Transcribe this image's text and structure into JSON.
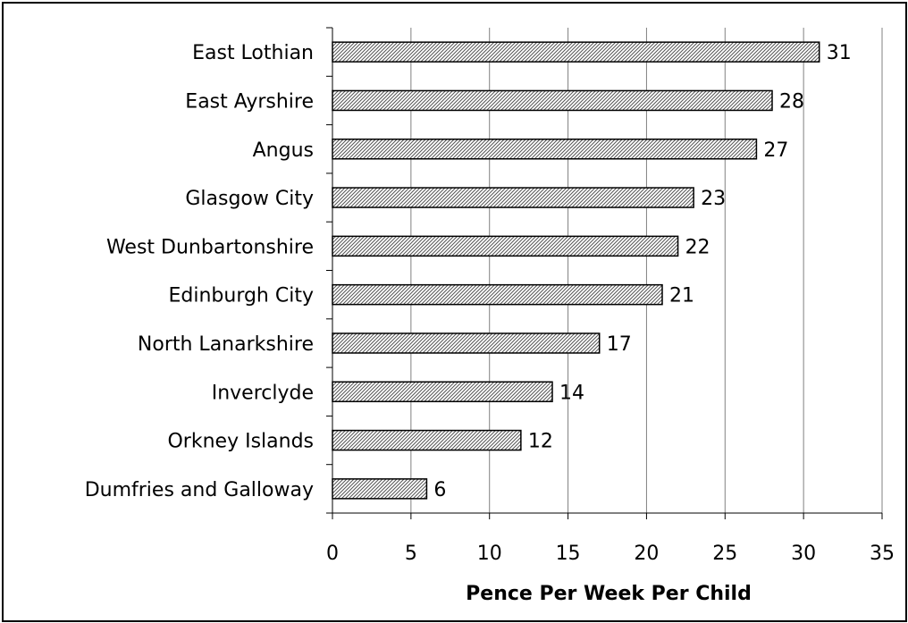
{
  "chart_data": {
    "type": "bar",
    "orientation": "horizontal",
    "categories": [
      "East Lothian",
      "East Ayrshire",
      "Angus",
      "Glasgow City",
      "West Dunbartonshire",
      "Edinburgh City",
      "North Lanarkshire",
      "Inverclyde",
      "Orkney Islands",
      "Dumfries and Galloway"
    ],
    "values": [
      31,
      28,
      27,
      23,
      22,
      21,
      17,
      14,
      12,
      6
    ],
    "data_labels": [
      "31",
      "28",
      "27",
      "23",
      "22",
      "21",
      "17",
      "14",
      "12",
      "6"
    ],
    "title": "",
    "xlabel": "Pence Per Week Per Child",
    "ylabel": "",
    "xlim": [
      0,
      35
    ],
    "xticks": [
      "0",
      "5",
      "10",
      "15",
      "20",
      "25",
      "30",
      "35"
    ],
    "grid": "vertical",
    "legend": "none",
    "bar_fill": "diagonal hatch",
    "colors": {
      "bar_stroke": "#000000",
      "hatch": "#555555",
      "grid": "#808080",
      "frame": "#000000"
    }
  }
}
